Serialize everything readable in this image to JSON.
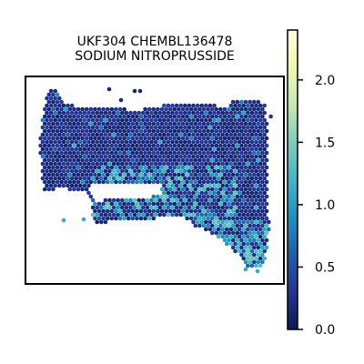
{
  "chart_data": {
    "type": "heatmap",
    "title_lines": [
      "UKF304 CHEMBL136478",
      "SODIUM NITROPRUSSIDE"
    ],
    "xlabel": "",
    "ylabel": "",
    "colorbar": {
      "min": 0.0,
      "max": 2.4,
      "ticks": [
        {
          "value": 0.0,
          "label": "0.0"
        },
        {
          "value": 0.5,
          "label": "0.5"
        },
        {
          "value": 1.0,
          "label": "1.0"
        },
        {
          "value": 1.5,
          "label": "1.5"
        },
        {
          "value": 2.0,
          "label": "2.0"
        }
      ],
      "colormap": "YlGnBu_r",
      "colormap_stops": [
        "#081d58",
        "#253494",
        "#225ea8",
        "#1d91c0",
        "#41b6c4",
        "#7fcdbb",
        "#c7e9b4",
        "#edf8b1",
        "#ffffd9"
      ]
    },
    "typical_value": 0.1,
    "high_value_range": [
      0.6,
      1.4
    ]
  }
}
